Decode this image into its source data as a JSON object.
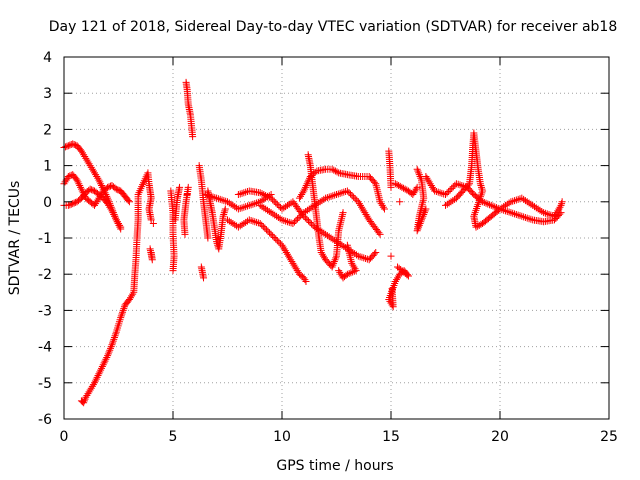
{
  "chart_data": {
    "type": "scatter",
    "title": "Day 121 of 2018, Sidereal Day-to-day VTEC variation (SDTVAR) for receiver ab18",
    "xlabel": "GPS time / hours",
    "ylabel": "SDTVAR / TECUs",
    "xlim": [
      0,
      25
    ],
    "ylim": [
      -6,
      4
    ],
    "xticks": [
      0,
      5,
      10,
      15,
      20,
      25
    ],
    "yticks": [
      -6,
      -5,
      -4,
      -3,
      -2,
      -1,
      0,
      1,
      2,
      3,
      4
    ],
    "grid": true,
    "marker": "+",
    "color": "#ff0000",
    "series": [
      {
        "name": "SDTVAR",
        "points": [
          [
            0.0,
            1.5
          ],
          [
            0.2,
            1.55
          ],
          [
            0.4,
            1.6
          ],
          [
            0.6,
            1.55
          ],
          [
            0.8,
            1.4
          ],
          [
            1.0,
            1.2
          ],
          [
            1.2,
            1.0
          ],
          [
            1.4,
            0.8
          ],
          [
            1.6,
            0.6
          ],
          [
            1.8,
            0.35
          ],
          [
            2.0,
            0.1
          ],
          [
            2.2,
            -0.2
          ],
          [
            2.4,
            -0.5
          ],
          [
            2.6,
            -0.75
          ],
          [
            0.0,
            0.5
          ],
          [
            0.1,
            0.6
          ],
          [
            0.2,
            0.7
          ],
          [
            0.4,
            0.75
          ],
          [
            0.6,
            0.6
          ],
          [
            0.8,
            0.35
          ],
          [
            1.0,
            0.1
          ],
          [
            1.2,
            0.0
          ],
          [
            1.4,
            -0.1
          ],
          [
            1.6,
            0.1
          ],
          [
            1.8,
            0.3
          ],
          [
            2.0,
            0.4
          ],
          [
            2.2,
            0.45
          ],
          [
            2.4,
            0.35
          ],
          [
            2.6,
            0.3
          ],
          [
            2.8,
            0.15
          ],
          [
            3.0,
            0.0
          ],
          [
            0.0,
            -0.1
          ],
          [
            0.2,
            -0.1
          ],
          [
            0.4,
            -0.05
          ],
          [
            0.6,
            0.0
          ],
          [
            0.8,
            0.1
          ],
          [
            1.0,
            0.25
          ],
          [
            1.2,
            0.35
          ],
          [
            1.4,
            0.3
          ],
          [
            1.6,
            0.2
          ],
          [
            1.8,
            0.1
          ],
          [
            2.0,
            -0.05
          ],
          [
            2.2,
            -0.25
          ],
          [
            2.4,
            -0.5
          ],
          [
            2.6,
            -0.7
          ],
          [
            0.8,
            -5.5
          ],
          [
            0.9,
            -5.55
          ],
          [
            1.0,
            -5.4
          ],
          [
            1.2,
            -5.2
          ],
          [
            1.4,
            -5.0
          ],
          [
            1.6,
            -4.75
          ],
          [
            1.8,
            -4.5
          ],
          [
            2.0,
            -4.25
          ],
          [
            2.2,
            -3.95
          ],
          [
            2.4,
            -3.6
          ],
          [
            2.6,
            -3.2
          ],
          [
            2.8,
            -2.85
          ],
          [
            3.0,
            -2.7
          ],
          [
            3.2,
            -2.5
          ],
          [
            3.25,
            -2.0
          ],
          [
            3.3,
            -1.6
          ],
          [
            3.35,
            -1.0
          ],
          [
            3.4,
            -0.5
          ],
          [
            3.4,
            -0.1
          ],
          [
            3.4,
            0.2
          ],
          [
            3.85,
            0.8
          ],
          [
            3.9,
            0.5
          ],
          [
            3.95,
            0.3
          ],
          [
            4.0,
            0.1
          ],
          [
            3.9,
            -0.2
          ],
          [
            4.0,
            -0.5
          ],
          [
            4.0,
            -1.4
          ],
          [
            4.05,
            -1.6
          ],
          [
            3.95,
            -1.3
          ],
          [
            4.1,
            -0.6
          ],
          [
            4.9,
            0.3
          ],
          [
            5.0,
            -0.3
          ],
          [
            5.0,
            -0.9
          ],
          [
            5.05,
            -1.5
          ],
          [
            5.0,
            -1.9
          ],
          [
            5.1,
            -0.5
          ],
          [
            5.2,
            0.1
          ],
          [
            5.3,
            0.4
          ],
          [
            5.6,
            3.3
          ],
          [
            5.65,
            3.1
          ],
          [
            5.7,
            2.7
          ],
          [
            5.8,
            2.4
          ],
          [
            5.85,
            2.1
          ],
          [
            5.9,
            1.8
          ],
          [
            5.7,
            0.4
          ],
          [
            5.6,
            0.0
          ],
          [
            5.5,
            -0.5
          ],
          [
            5.55,
            -0.9
          ],
          [
            5.65,
            0.2
          ],
          [
            6.2,
            1.0
          ],
          [
            6.3,
            0.6
          ],
          [
            6.4,
            0.0
          ],
          [
            6.5,
            -0.5
          ],
          [
            6.6,
            -1.0
          ],
          [
            6.3,
            -1.8
          ],
          [
            6.4,
            -2.1
          ],
          [
            6.6,
            0.3
          ],
          [
            6.7,
            0.0
          ],
          [
            6.8,
            -0.3
          ],
          [
            6.9,
            -0.7
          ],
          [
            7.0,
            -1.1
          ],
          [
            7.1,
            -1.3
          ],
          [
            7.2,
            -0.9
          ],
          [
            7.3,
            -0.4
          ],
          [
            7.4,
            -0.2
          ],
          [
            6.5,
            0.2
          ],
          [
            7.0,
            0.1
          ],
          [
            7.5,
            0.0
          ],
          [
            8.0,
            -0.2
          ],
          [
            8.5,
            -0.1
          ],
          [
            9.0,
            0.0
          ],
          [
            9.5,
            0.2
          ],
          [
            7.5,
            -0.5
          ],
          [
            8.0,
            -0.7
          ],
          [
            8.5,
            -0.5
          ],
          [
            9.0,
            -0.6
          ],
          [
            9.5,
            -0.9
          ],
          [
            10.0,
            -1.2
          ],
          [
            10.5,
            -1.7
          ],
          [
            10.8,
            -2.0
          ],
          [
            11.0,
            -2.1
          ],
          [
            11.1,
            -2.2
          ],
          [
            8.0,
            0.2
          ],
          [
            8.5,
            0.3
          ],
          [
            9.0,
            0.25
          ],
          [
            9.5,
            0.1
          ],
          [
            10.0,
            -0.2
          ],
          [
            10.5,
            0.0
          ],
          [
            11.0,
            -0.4
          ],
          [
            11.5,
            -0.7
          ],
          [
            12.0,
            -0.9
          ],
          [
            12.5,
            -1.1
          ],
          [
            13.0,
            -1.3
          ],
          [
            13.5,
            -1.5
          ],
          [
            14.0,
            -1.6
          ],
          [
            14.3,
            -1.4
          ],
          [
            9.0,
            -0.1
          ],
          [
            9.5,
            -0.3
          ],
          [
            10.0,
            -0.5
          ],
          [
            10.5,
            -0.6
          ],
          [
            11.0,
            -0.3
          ],
          [
            11.5,
            -0.1
          ],
          [
            12.0,
            0.1
          ],
          [
            12.5,
            0.2
          ],
          [
            13.0,
            0.3
          ],
          [
            13.5,
            0.0
          ],
          [
            14.0,
            -0.5
          ],
          [
            14.5,
            -0.9
          ],
          [
            10.8,
            0.1
          ],
          [
            11.0,
            0.3
          ],
          [
            11.3,
            0.7
          ],
          [
            11.6,
            0.85
          ],
          [
            12.0,
            0.9
          ],
          [
            12.3,
            0.9
          ],
          [
            12.6,
            0.8
          ],
          [
            13.0,
            0.75
          ],
          [
            13.5,
            0.7
          ],
          [
            14.0,
            0.7
          ],
          [
            14.3,
            0.5
          ],
          [
            14.5,
            0.0
          ],
          [
            14.7,
            -0.2
          ],
          [
            11.2,
            1.3
          ],
          [
            11.3,
            1.0
          ],
          [
            11.4,
            0.5
          ],
          [
            11.5,
            0.0
          ],
          [
            11.6,
            -0.5
          ],
          [
            11.7,
            -1.0
          ],
          [
            11.8,
            -1.4
          ],
          [
            12.0,
            -1.6
          ],
          [
            12.3,
            -1.8
          ],
          [
            12.5,
            -1.5
          ],
          [
            12.6,
            -0.8
          ],
          [
            12.8,
            -0.3
          ],
          [
            13.0,
            -1.2
          ],
          [
            13.2,
            -1.7
          ],
          [
            13.4,
            -1.9
          ],
          [
            13.0,
            -2.0
          ],
          [
            12.8,
            -2.1
          ],
          [
            12.6,
            -1.9
          ],
          [
            14.9,
            1.4
          ],
          [
            14.95,
            1.0
          ],
          [
            15.0,
            0.4
          ],
          [
            15.0,
            -1.5
          ],
          [
            15.05,
            -2.4
          ],
          [
            15.1,
            -2.9
          ],
          [
            14.9,
            -2.7
          ],
          [
            15.2,
            -2.2
          ],
          [
            15.4,
            -2.0
          ],
          [
            15.6,
            -1.9
          ],
          [
            15.8,
            -2.05
          ],
          [
            15.3,
            -1.8
          ],
          [
            15.2,
            0.5
          ],
          [
            15.5,
            0.4
          ],
          [
            15.8,
            0.3
          ],
          [
            16.0,
            0.2
          ],
          [
            16.2,
            0.4
          ],
          [
            15.4,
            0.0
          ],
          [
            16.2,
            0.9
          ],
          [
            16.4,
            0.6
          ],
          [
            16.5,
            0.1
          ],
          [
            16.3,
            -0.4
          ],
          [
            16.2,
            -0.8
          ],
          [
            16.4,
            -0.5
          ],
          [
            16.6,
            -0.2
          ],
          [
            16.6,
            0.7
          ],
          [
            17.0,
            0.3
          ],
          [
            17.5,
            0.2
          ],
          [
            18.0,
            0.5
          ],
          [
            18.5,
            0.4
          ],
          [
            18.8,
            0.2
          ],
          [
            19.2,
            0.0
          ],
          [
            19.6,
            -0.1
          ],
          [
            20.0,
            -0.2
          ],
          [
            20.5,
            -0.3
          ],
          [
            21.0,
            -0.4
          ],
          [
            21.5,
            -0.5
          ],
          [
            22.0,
            -0.55
          ],
          [
            22.5,
            -0.5
          ],
          [
            22.8,
            -0.3
          ],
          [
            17.5,
            -0.1
          ],
          [
            18.0,
            0.1
          ],
          [
            18.3,
            0.3
          ],
          [
            18.6,
            0.5
          ],
          [
            18.7,
            1.0
          ],
          [
            18.75,
            1.5
          ],
          [
            18.8,
            1.9
          ],
          [
            18.9,
            1.4
          ],
          [
            19.0,
            0.9
          ],
          [
            19.1,
            0.5
          ],
          [
            19.2,
            0.3
          ],
          [
            18.8,
            -0.4
          ],
          [
            18.9,
            -0.7
          ],
          [
            19.2,
            -0.6
          ],
          [
            19.6,
            -0.4
          ],
          [
            20.0,
            -0.2
          ],
          [
            20.5,
            0.0
          ],
          [
            21.0,
            0.1
          ],
          [
            21.5,
            -0.1
          ],
          [
            22.0,
            -0.3
          ],
          [
            22.5,
            -0.4
          ],
          [
            22.8,
            -0.1
          ],
          [
            22.85,
            0.0
          ]
        ]
      }
    ]
  }
}
